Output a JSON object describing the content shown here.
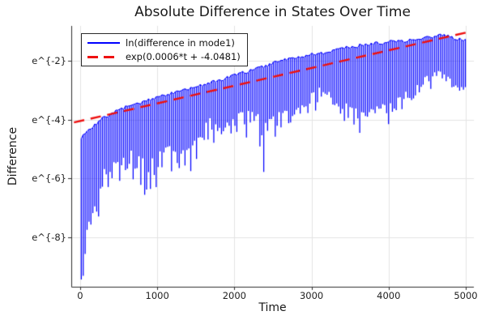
{
  "title": "Absolute Difference in States Over Time",
  "colors": {
    "background": "#ffffff",
    "grid": "#e4e4e4",
    "axis": "#2e2e2e",
    "text": "#191919",
    "series_blue": "#0000ff",
    "series_red": "#ee1111"
  },
  "chart_data": {
    "type": "line",
    "title": "Absolute Difference in States Over Time",
    "xlabel": "Time",
    "ylabel": "Difference",
    "y_scale": "ln",
    "grid": true,
    "legend_position": "top-left",
    "x_ticks": [
      0,
      1000,
      2000,
      3000,
      4000,
      5000
    ],
    "y_ticks": [
      {
        "value": -2,
        "label": "e^{-2}"
      },
      {
        "value": -4,
        "label": "e^{-4}"
      },
      {
        "value": -6,
        "label": "e^{-6}"
      },
      {
        "value": -8,
        "label": "e^{-8}"
      }
    ],
    "xlim": [
      -115,
      5105
    ],
    "ylim_ln": [
      -9.67,
      -0.82
    ],
    "series": [
      {
        "name": "ln(difference in mode1)",
        "color": "#0000ff",
        "line_style": "solid",
        "kind": "oscillatory_log_abs",
        "period_t": 25,
        "t_range": [
          0,
          5000
        ],
        "envelope_top": [
          [
            0,
            -4.62
          ],
          [
            150,
            -4.28
          ],
          [
            300,
            -3.95
          ],
          [
            450,
            -3.74
          ],
          [
            600,
            -3.57
          ],
          [
            750,
            -3.44
          ],
          [
            900,
            -3.32
          ],
          [
            1050,
            -3.2
          ],
          [
            1200,
            -3.1
          ],
          [
            1350,
            -3.0
          ],
          [
            1500,
            -2.9
          ],
          [
            1650,
            -2.78
          ],
          [
            1800,
            -2.68
          ],
          [
            1950,
            -2.55
          ],
          [
            2100,
            -2.42
          ],
          [
            2250,
            -2.3
          ],
          [
            2400,
            -2.18
          ],
          [
            2550,
            -2.05
          ],
          [
            2700,
            -1.95
          ],
          [
            2850,
            -1.87
          ],
          [
            3000,
            -1.8
          ],
          [
            3200,
            -1.7
          ],
          [
            3400,
            -1.58
          ],
          [
            3600,
            -1.5
          ],
          [
            3800,
            -1.42
          ],
          [
            4000,
            -1.37
          ],
          [
            4200,
            -1.32
          ],
          [
            4400,
            -1.27
          ],
          [
            4550,
            -1.2
          ],
          [
            4700,
            -1.13
          ],
          [
            4850,
            -1.25
          ],
          [
            5000,
            -1.32
          ]
        ],
        "envelope_bottom_typical": [
          [
            0,
            -6.6
          ],
          [
            100,
            -6.2
          ],
          [
            200,
            -5.9
          ],
          [
            300,
            -5.7
          ],
          [
            400,
            -5.5
          ],
          [
            500,
            -5.3
          ],
          [
            600,
            -4.9
          ],
          [
            700,
            -5.0
          ],
          [
            800,
            -5.3
          ],
          [
            900,
            -5.4
          ],
          [
            1000,
            -5.1
          ],
          [
            1100,
            -4.9
          ],
          [
            1200,
            -4.9
          ],
          [
            1300,
            -5.1
          ],
          [
            1400,
            -4.9
          ],
          [
            1500,
            -4.6
          ],
          [
            1600,
            -4.2
          ],
          [
            1700,
            -3.9
          ],
          [
            1800,
            -4.0
          ],
          [
            1900,
            -4.1
          ],
          [
            2000,
            -3.9
          ],
          [
            2100,
            -3.7
          ],
          [
            2200,
            -3.7
          ],
          [
            2300,
            -3.8
          ],
          [
            2400,
            -4.0
          ],
          [
            2500,
            -3.9
          ],
          [
            2600,
            -3.7
          ],
          [
            2700,
            -3.6
          ],
          [
            2800,
            -3.5
          ],
          [
            2900,
            -3.4
          ],
          [
            3000,
            -3.1
          ],
          [
            3100,
            -2.9
          ],
          [
            3200,
            -3.0
          ],
          [
            3300,
            -3.2
          ],
          [
            3400,
            -3.4
          ],
          [
            3500,
            -3.5
          ],
          [
            3600,
            -3.6
          ],
          [
            3700,
            -3.7
          ],
          [
            3800,
            -3.6
          ],
          [
            3900,
            -3.5
          ],
          [
            4000,
            -3.4
          ],
          [
            4100,
            -3.3
          ],
          [
            4200,
            -3.1
          ],
          [
            4300,
            -2.9
          ],
          [
            4400,
            -2.7
          ],
          [
            4500,
            -2.5
          ],
          [
            4600,
            -2.3
          ],
          [
            4700,
            -2.4
          ],
          [
            4800,
            -2.6
          ],
          [
            4900,
            -2.8
          ],
          [
            5000,
            -2.9
          ]
        ],
        "envelope_bottom_deep": [
          [
            0,
            -9.5
          ],
          [
            60,
            -9.2
          ],
          [
            120,
            -8.1
          ],
          [
            200,
            -7.5
          ],
          [
            300,
            -7.1
          ],
          [
            400,
            -6.6
          ],
          [
            500,
            -6.3
          ],
          [
            600,
            -5.7
          ],
          [
            700,
            -5.9
          ],
          [
            800,
            -6.4
          ],
          [
            900,
            -6.4
          ],
          [
            1000,
            -6.1
          ],
          [
            1100,
            -5.7
          ],
          [
            1200,
            -5.8
          ],
          [
            1300,
            -6.0
          ],
          [
            1400,
            -5.7
          ],
          [
            1500,
            -5.4
          ],
          [
            1600,
            -4.9
          ],
          [
            1700,
            -4.6
          ],
          [
            1800,
            -4.7
          ],
          [
            1900,
            -4.7
          ],
          [
            2000,
            -4.6
          ],
          [
            2100,
            -4.4
          ],
          [
            2200,
            -4.5
          ],
          [
            2300,
            -4.9
          ],
          [
            2400,
            -5.8
          ],
          [
            2500,
            -4.8
          ],
          [
            2600,
            -4.5
          ],
          [
            2700,
            -4.3
          ],
          [
            2800,
            -4.2
          ],
          [
            2900,
            -4.0
          ],
          [
            3000,
            -3.7
          ],
          [
            3100,
            -3.4
          ],
          [
            3200,
            -3.5
          ],
          [
            3300,
            -3.7
          ],
          [
            3400,
            -4.0
          ],
          [
            3500,
            -4.2
          ],
          [
            3600,
            -4.3
          ],
          [
            3700,
            -4.3
          ],
          [
            3800,
            -4.2
          ],
          [
            3900,
            -4.1
          ],
          [
            4000,
            -4.0
          ],
          [
            4100,
            -3.9
          ],
          [
            4200,
            -3.7
          ],
          [
            4300,
            -3.4
          ],
          [
            4400,
            -3.1
          ],
          [
            4500,
            -2.9
          ],
          [
            4600,
            -2.7
          ],
          [
            4700,
            -2.9
          ],
          [
            4800,
            -3.2
          ],
          [
            4900,
            -3.3
          ],
          [
            5000,
            -3.2
          ]
        ]
      },
      {
        "name": "exp(0.0006*t + -4.0481)",
        "color": "#ee1111",
        "line_style": "dashed",
        "kind": "exp_fit_line",
        "slope": 0.0006,
        "intercept": -4.0481,
        "t_range": [
          0,
          5000
        ]
      }
    ]
  }
}
